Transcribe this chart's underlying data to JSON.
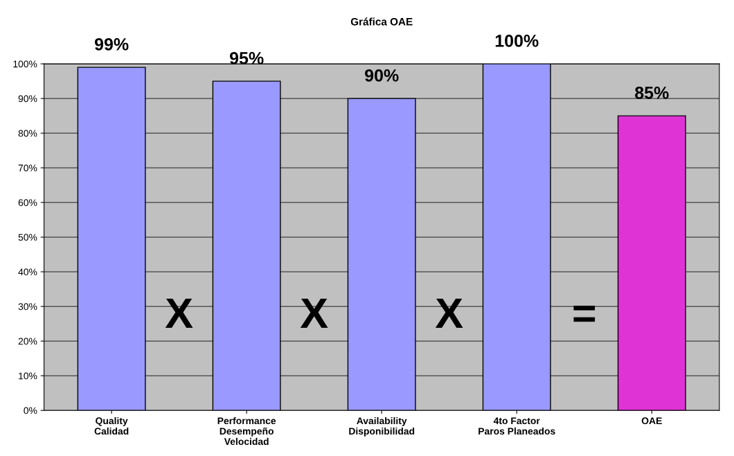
{
  "chart_data": {
    "type": "bar",
    "title": "Gráfica OAE",
    "categories": [
      "Quality\nCalidad",
      "Performance\nDesempeño\nVelocidad",
      "Availability\nDisponibilidad",
      "4to Factor\nParos Planeados",
      "OAE"
    ],
    "values": [
      99,
      95,
      90,
      100,
      85
    ],
    "colors": [
      "#9999ff",
      "#9999ff",
      "#9999ff",
      "#9999ff",
      "#e033d6"
    ],
    "value_labels": [
      "99%",
      "95%",
      "90%",
      "100%",
      "85%"
    ],
    "ylim": [
      0,
      100
    ],
    "yticks": [
      {
        "value": 0,
        "label": "0%"
      },
      {
        "value": 10,
        "label": "10%"
      },
      {
        "value": 20,
        "label": "20%"
      },
      {
        "value": 30,
        "label": "30%"
      },
      {
        "value": 40,
        "label": "40%"
      },
      {
        "value": 50,
        "label": "50%"
      },
      {
        "value": 60,
        "label": "60%"
      },
      {
        "value": 70,
        "label": "70%"
      },
      {
        "value": 80,
        "label": "80%"
      },
      {
        "value": 90,
        "label": "90%"
      },
      {
        "value": 100,
        "label": "100%"
      }
    ],
    "grid": "y",
    "annotations": [
      "X",
      "X",
      "X",
      "="
    ]
  }
}
